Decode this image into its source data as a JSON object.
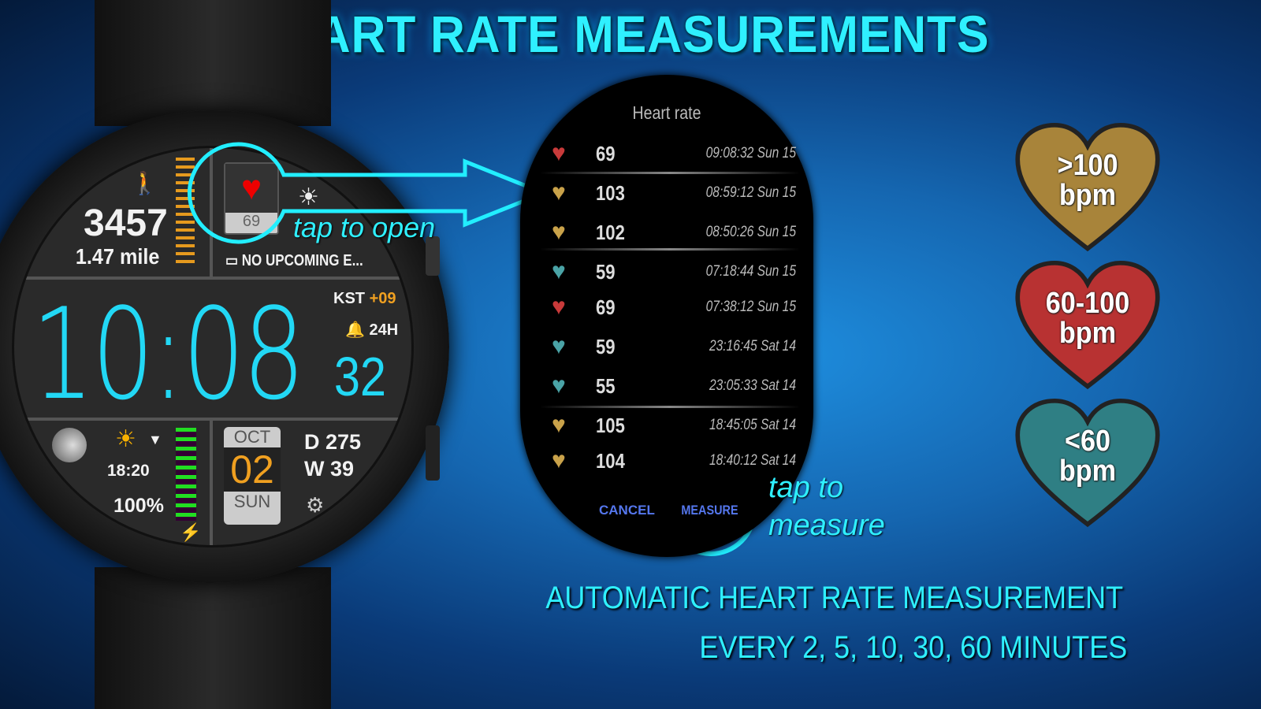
{
  "title": "HEART RATE MEASUREMENTS",
  "watch": {
    "steps": "3457",
    "distance": "1.47 mile",
    "hr_complication_value": "69",
    "calendar": "NO UPCOMING E...",
    "time_hm": "10:08",
    "seconds": "32",
    "timezone": "KST",
    "tz_offset": "+09",
    "alarm": "24H",
    "sunset": "18:20",
    "battery": "100%",
    "month": "OCT",
    "day": "02",
    "weekday": "SUN",
    "day_of_year": "D 275",
    "week": "W 39"
  },
  "annotations": {
    "tap_open": "tap to open",
    "tap_measure_1": "tap to",
    "tap_measure_2": "measure"
  },
  "heart_panel": {
    "title": "Heart rate",
    "rows": [
      {
        "bpm": "69",
        "time": "09:08:32 Sun 15",
        "zone": "red"
      },
      {
        "bpm": "103",
        "time": "08:59:12 Sun 15",
        "zone": "gold"
      },
      {
        "bpm": "102",
        "time": "08:50:26 Sun 15",
        "zone": "gold"
      },
      {
        "bpm": "59",
        "time": "07:18:44 Sun 15",
        "zone": "teal"
      },
      {
        "bpm": "69",
        "time": "07:38:12 Sun 15",
        "zone": "red"
      },
      {
        "bpm": "59",
        "time": "23:16:45 Sat 14",
        "zone": "teal"
      },
      {
        "bpm": "55",
        "time": "23:05:33 Sat 14",
        "zone": "teal"
      },
      {
        "bpm": "105",
        "time": "18:45:05 Sat 14",
        "zone": "gold"
      },
      {
        "bpm": "104",
        "time": "18:40:12 Sat 14",
        "zone": "gold"
      }
    ],
    "cancel": "CANCEL",
    "measure": "MEASURE"
  },
  "legend": [
    {
      "l1": ">100",
      "l2": "bpm",
      "color": "#a8843a"
    },
    {
      "l1": "60-100",
      "l2": "bpm",
      "color": "#b83232"
    },
    {
      "l1": "<60",
      "l2": "bpm",
      "color": "#2f7f84"
    }
  ],
  "zone_colors": {
    "red": "#c83a3a",
    "gold": "#c9a24a",
    "teal": "#4aa3a6"
  },
  "footer": {
    "line1": "AUTOMATIC HEART RATE MEASUREMENT",
    "line2": "EVERY 2, 5, 10, 30, 60 MINUTES"
  }
}
